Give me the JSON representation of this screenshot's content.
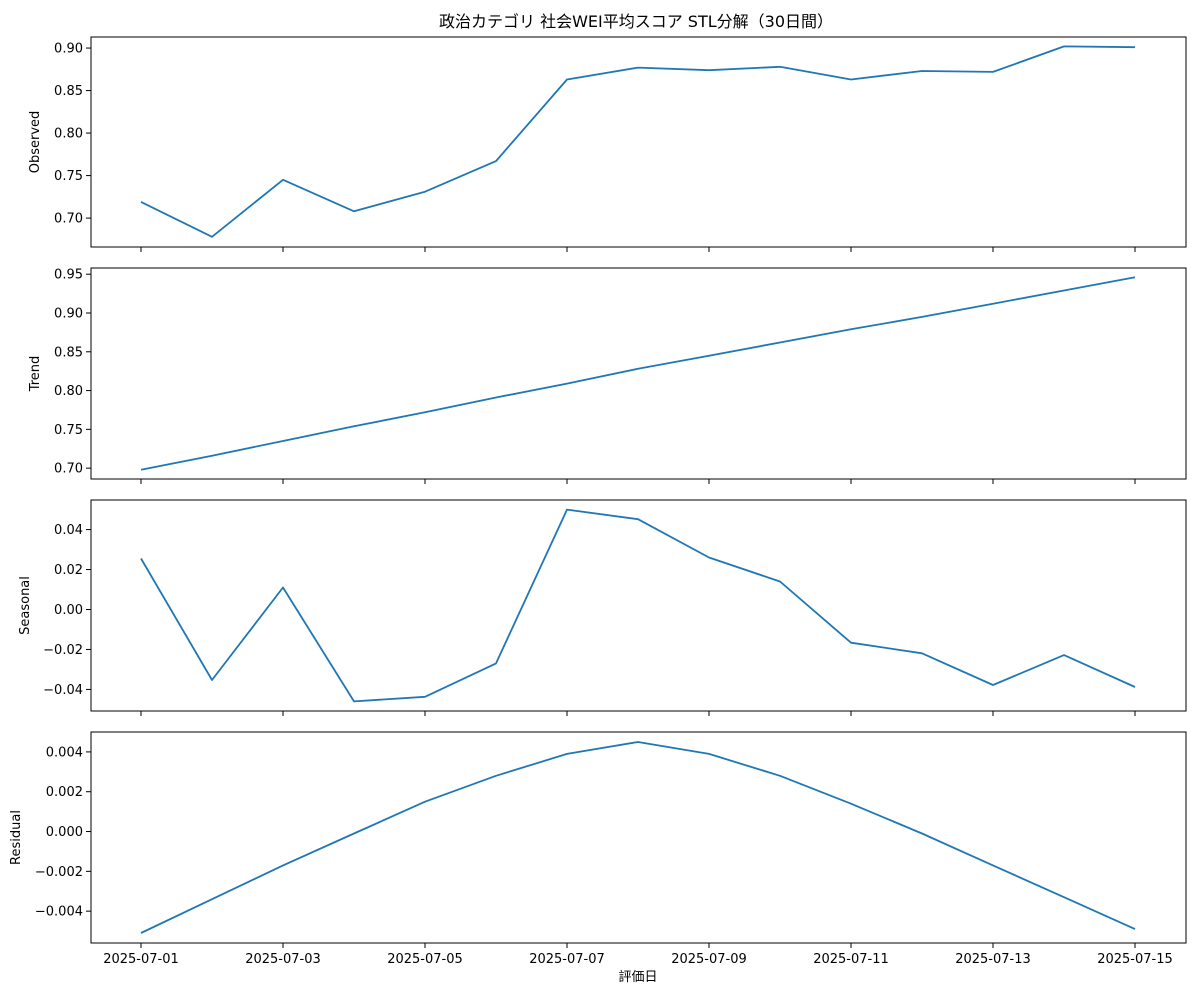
{
  "title": "政治カテゴリ 社会WEI平均スコア STL分解（30日間）",
  "xlabel": "評価日",
  "x_tick_labels": [
    "2025-07-01",
    "2025-07-03",
    "2025-07-05",
    "2025-07-07",
    "2025-07-09",
    "2025-07-11",
    "2025-07-13",
    "2025-07-15"
  ],
  "colors": {
    "line": "#1f77b4",
    "axes": "#000000"
  },
  "chart_data": [
    {
      "type": "line",
      "ylabel": "Observed",
      "x": [
        "2025-07-01",
        "2025-07-02",
        "2025-07-03",
        "2025-07-04",
        "2025-07-05",
        "2025-07-06",
        "2025-07-07",
        "2025-07-08",
        "2025-07-09",
        "2025-07-10",
        "2025-07-11",
        "2025-07-12",
        "2025-07-13",
        "2025-07-14",
        "2025-07-15"
      ],
      "values": [
        0.719,
        0.678,
        0.745,
        0.708,
        0.731,
        0.767,
        0.863,
        0.877,
        0.874,
        0.878,
        0.863,
        0.873,
        0.872,
        0.902,
        0.901
      ],
      "ylim": [
        0.666,
        0.913
      ],
      "yticks": [
        0.7,
        0.75,
        0.8,
        0.85,
        0.9
      ],
      "ytick_labels": [
        "0.70",
        "0.75",
        "0.80",
        "0.85",
        "0.90"
      ]
    },
    {
      "type": "line",
      "ylabel": "Trend",
      "x": [
        "2025-07-01",
        "2025-07-02",
        "2025-07-03",
        "2025-07-04",
        "2025-07-05",
        "2025-07-06",
        "2025-07-07",
        "2025-07-08",
        "2025-07-09",
        "2025-07-10",
        "2025-07-11",
        "2025-07-12",
        "2025-07-13",
        "2025-07-14",
        "2025-07-15"
      ],
      "values": [
        0.698,
        0.716,
        0.735,
        0.754,
        0.772,
        0.791,
        0.809,
        0.828,
        0.845,
        0.862,
        0.879,
        0.895,
        0.912,
        0.929,
        0.946
      ],
      "ylim": [
        0.686,
        0.958
      ],
      "yticks": [
        0.7,
        0.75,
        0.8,
        0.85,
        0.9,
        0.95
      ],
      "ytick_labels": [
        "0.70",
        "0.75",
        "0.80",
        "0.85",
        "0.90",
        "0.95"
      ]
    },
    {
      "type": "line",
      "ylabel": "Seasonal",
      "x": [
        "2025-07-01",
        "2025-07-02",
        "2025-07-03",
        "2025-07-04",
        "2025-07-05",
        "2025-07-06",
        "2025-07-07",
        "2025-07-08",
        "2025-07-09",
        "2025-07-10",
        "2025-07-11",
        "2025-07-12",
        "2025-07-13",
        "2025-07-14",
        "2025-07-15"
      ],
      "values": [
        0.0255,
        -0.0353,
        0.011,
        -0.046,
        -0.0437,
        -0.027,
        0.05,
        0.0452,
        0.026,
        0.014,
        -0.0166,
        -0.0219,
        -0.0378,
        -0.0228,
        -0.0388
      ],
      "ylim": [
        -0.0508,
        0.0548
      ],
      "yticks": [
        -0.04,
        -0.02,
        0.0,
        0.02,
        0.04
      ],
      "ytick_labels": [
        "−0.04",
        "−0.02",
        "0.00",
        "0.02",
        "0.04"
      ]
    },
    {
      "type": "line",
      "ylabel": "Residual",
      "x": [
        "2025-07-01",
        "2025-07-02",
        "2025-07-03",
        "2025-07-04",
        "2025-07-05",
        "2025-07-06",
        "2025-07-07",
        "2025-07-08",
        "2025-07-09",
        "2025-07-10",
        "2025-07-11",
        "2025-07-12",
        "2025-07-13",
        "2025-07-14",
        "2025-07-15"
      ],
      "values": [
        -0.0051,
        -0.0034,
        -0.0017,
        -0.0001,
        0.0015,
        0.0028,
        0.0039,
        0.0045,
        0.0039,
        0.0028,
        0.0014,
        -0.0001,
        -0.0017,
        -0.0033,
        -0.0049
      ],
      "ylim": [
        -0.0056,
        0.005
      ],
      "yticks": [
        -0.004,
        -0.002,
        0.0,
        0.002,
        0.004
      ],
      "ytick_labels": [
        "−0.004",
        "−0.002",
        "0.000",
        "0.002",
        "0.004"
      ]
    }
  ]
}
